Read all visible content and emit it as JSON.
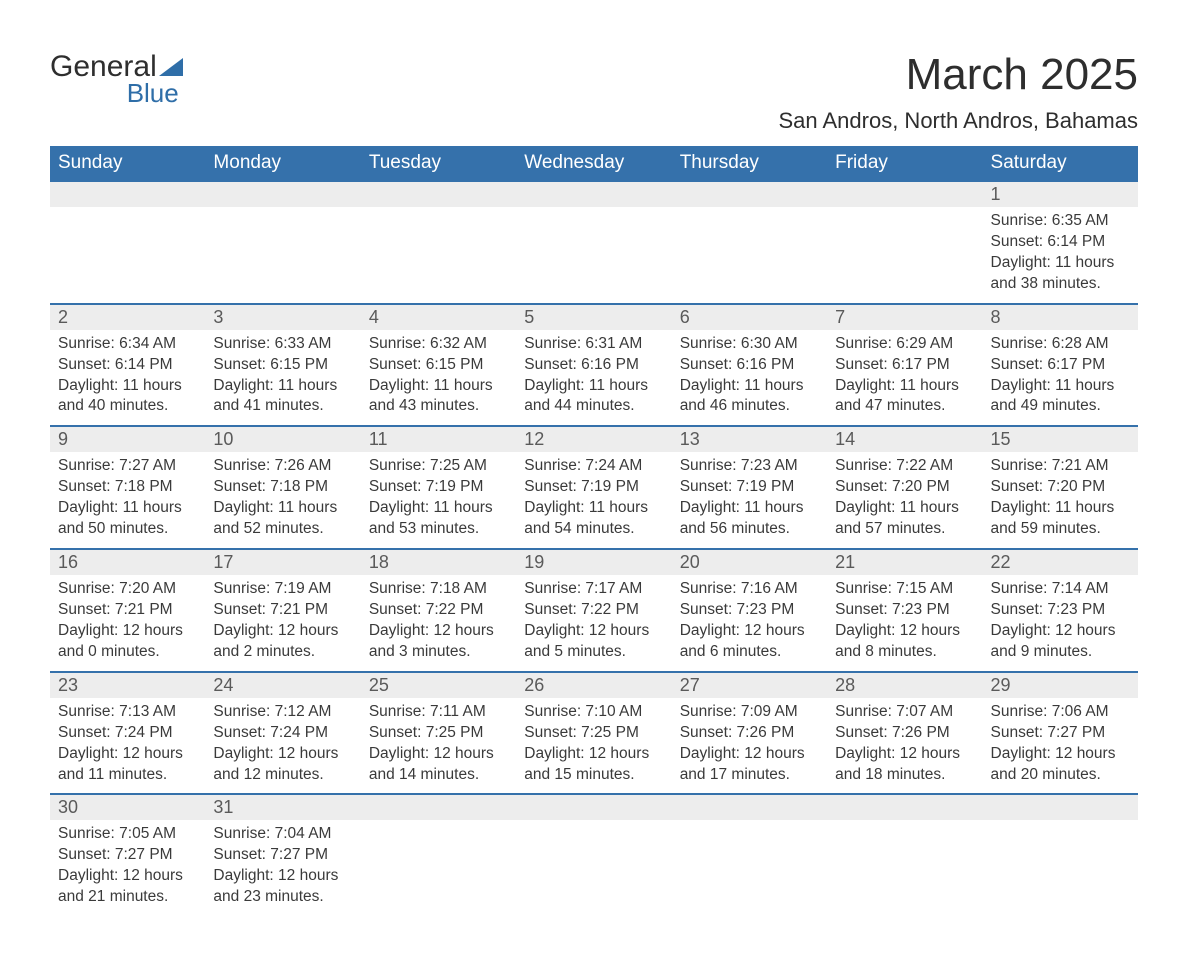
{
  "branding": {
    "logo_text_1": "General",
    "logo_text_2": "Blue",
    "logo_color": "#2f6ea8"
  },
  "header": {
    "month_title": "March 2025",
    "location": "San Andros, North Andros, Bahamas"
  },
  "calendar": {
    "type": "calendar-table",
    "header_bg": "#3571ab",
    "header_text_color": "#ffffff",
    "daynum_bg": "#ededed",
    "row_border_color": "#3571ab",
    "text_color": "#3a3a3a",
    "day_headers": [
      "Sunday",
      "Monday",
      "Tuesday",
      "Wednesday",
      "Thursday",
      "Friday",
      "Saturday"
    ],
    "weeks": [
      [
        null,
        null,
        null,
        null,
        null,
        null,
        {
          "n": "1",
          "sunrise": "Sunrise: 6:35 AM",
          "sunset": "Sunset: 6:14 PM",
          "day1": "Daylight: 11 hours",
          "day2": "and 38 minutes."
        }
      ],
      [
        {
          "n": "2",
          "sunrise": "Sunrise: 6:34 AM",
          "sunset": "Sunset: 6:14 PM",
          "day1": "Daylight: 11 hours",
          "day2": "and 40 minutes."
        },
        {
          "n": "3",
          "sunrise": "Sunrise: 6:33 AM",
          "sunset": "Sunset: 6:15 PM",
          "day1": "Daylight: 11 hours",
          "day2": "and 41 minutes."
        },
        {
          "n": "4",
          "sunrise": "Sunrise: 6:32 AM",
          "sunset": "Sunset: 6:15 PM",
          "day1": "Daylight: 11 hours",
          "day2": "and 43 minutes."
        },
        {
          "n": "5",
          "sunrise": "Sunrise: 6:31 AM",
          "sunset": "Sunset: 6:16 PM",
          "day1": "Daylight: 11 hours",
          "day2": "and 44 minutes."
        },
        {
          "n": "6",
          "sunrise": "Sunrise: 6:30 AM",
          "sunset": "Sunset: 6:16 PM",
          "day1": "Daylight: 11 hours",
          "day2": "and 46 minutes."
        },
        {
          "n": "7",
          "sunrise": "Sunrise: 6:29 AM",
          "sunset": "Sunset: 6:17 PM",
          "day1": "Daylight: 11 hours",
          "day2": "and 47 minutes."
        },
        {
          "n": "8",
          "sunrise": "Sunrise: 6:28 AM",
          "sunset": "Sunset: 6:17 PM",
          "day1": "Daylight: 11 hours",
          "day2": "and 49 minutes."
        }
      ],
      [
        {
          "n": "9",
          "sunrise": "Sunrise: 7:27 AM",
          "sunset": "Sunset: 7:18 PM",
          "day1": "Daylight: 11 hours",
          "day2": "and 50 minutes."
        },
        {
          "n": "10",
          "sunrise": "Sunrise: 7:26 AM",
          "sunset": "Sunset: 7:18 PM",
          "day1": "Daylight: 11 hours",
          "day2": "and 52 minutes."
        },
        {
          "n": "11",
          "sunrise": "Sunrise: 7:25 AM",
          "sunset": "Sunset: 7:19 PM",
          "day1": "Daylight: 11 hours",
          "day2": "and 53 minutes."
        },
        {
          "n": "12",
          "sunrise": "Sunrise: 7:24 AM",
          "sunset": "Sunset: 7:19 PM",
          "day1": "Daylight: 11 hours",
          "day2": "and 54 minutes."
        },
        {
          "n": "13",
          "sunrise": "Sunrise: 7:23 AM",
          "sunset": "Sunset: 7:19 PM",
          "day1": "Daylight: 11 hours",
          "day2": "and 56 minutes."
        },
        {
          "n": "14",
          "sunrise": "Sunrise: 7:22 AM",
          "sunset": "Sunset: 7:20 PM",
          "day1": "Daylight: 11 hours",
          "day2": "and 57 minutes."
        },
        {
          "n": "15",
          "sunrise": "Sunrise: 7:21 AM",
          "sunset": "Sunset: 7:20 PM",
          "day1": "Daylight: 11 hours",
          "day2": "and 59 minutes."
        }
      ],
      [
        {
          "n": "16",
          "sunrise": "Sunrise: 7:20 AM",
          "sunset": "Sunset: 7:21 PM",
          "day1": "Daylight: 12 hours",
          "day2": "and 0 minutes."
        },
        {
          "n": "17",
          "sunrise": "Sunrise: 7:19 AM",
          "sunset": "Sunset: 7:21 PM",
          "day1": "Daylight: 12 hours",
          "day2": "and 2 minutes."
        },
        {
          "n": "18",
          "sunrise": "Sunrise: 7:18 AM",
          "sunset": "Sunset: 7:22 PM",
          "day1": "Daylight: 12 hours",
          "day2": "and 3 minutes."
        },
        {
          "n": "19",
          "sunrise": "Sunrise: 7:17 AM",
          "sunset": "Sunset: 7:22 PM",
          "day1": "Daylight: 12 hours",
          "day2": "and 5 minutes."
        },
        {
          "n": "20",
          "sunrise": "Sunrise: 7:16 AM",
          "sunset": "Sunset: 7:23 PM",
          "day1": "Daylight: 12 hours",
          "day2": "and 6 minutes."
        },
        {
          "n": "21",
          "sunrise": "Sunrise: 7:15 AM",
          "sunset": "Sunset: 7:23 PM",
          "day1": "Daylight: 12 hours",
          "day2": "and 8 minutes."
        },
        {
          "n": "22",
          "sunrise": "Sunrise: 7:14 AM",
          "sunset": "Sunset: 7:23 PM",
          "day1": "Daylight: 12 hours",
          "day2": "and 9 minutes."
        }
      ],
      [
        {
          "n": "23",
          "sunrise": "Sunrise: 7:13 AM",
          "sunset": "Sunset: 7:24 PM",
          "day1": "Daylight: 12 hours",
          "day2": "and 11 minutes."
        },
        {
          "n": "24",
          "sunrise": "Sunrise: 7:12 AM",
          "sunset": "Sunset: 7:24 PM",
          "day1": "Daylight: 12 hours",
          "day2": "and 12 minutes."
        },
        {
          "n": "25",
          "sunrise": "Sunrise: 7:11 AM",
          "sunset": "Sunset: 7:25 PM",
          "day1": "Daylight: 12 hours",
          "day2": "and 14 minutes."
        },
        {
          "n": "26",
          "sunrise": "Sunrise: 7:10 AM",
          "sunset": "Sunset: 7:25 PM",
          "day1": "Daylight: 12 hours",
          "day2": "and 15 minutes."
        },
        {
          "n": "27",
          "sunrise": "Sunrise: 7:09 AM",
          "sunset": "Sunset: 7:26 PM",
          "day1": "Daylight: 12 hours",
          "day2": "and 17 minutes."
        },
        {
          "n": "28",
          "sunrise": "Sunrise: 7:07 AM",
          "sunset": "Sunset: 7:26 PM",
          "day1": "Daylight: 12 hours",
          "day2": "and 18 minutes."
        },
        {
          "n": "29",
          "sunrise": "Sunrise: 7:06 AM",
          "sunset": "Sunset: 7:27 PM",
          "day1": "Daylight: 12 hours",
          "day2": "and 20 minutes."
        }
      ],
      [
        {
          "n": "30",
          "sunrise": "Sunrise: 7:05 AM",
          "sunset": "Sunset: 7:27 PM",
          "day1": "Daylight: 12 hours",
          "day2": "and 21 minutes."
        },
        {
          "n": "31",
          "sunrise": "Sunrise: 7:04 AM",
          "sunset": "Sunset: 7:27 PM",
          "day1": "Daylight: 12 hours",
          "day2": "and 23 minutes."
        },
        null,
        null,
        null,
        null,
        null
      ]
    ]
  }
}
